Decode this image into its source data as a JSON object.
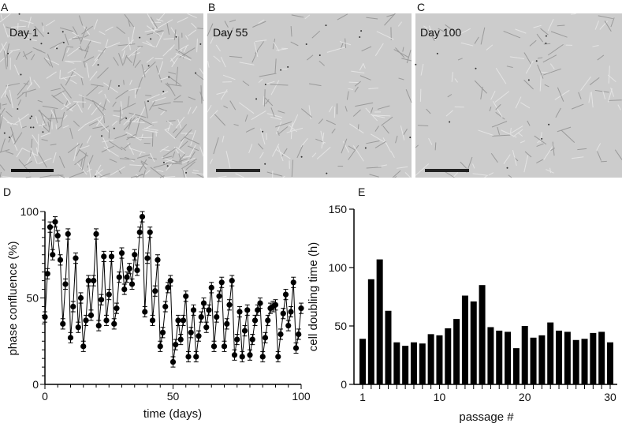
{
  "panels": {
    "A": {
      "letter": "A",
      "caption": "Day 1"
    },
    "B": {
      "letter": "B",
      "caption": "Day 55"
    },
    "C": {
      "letter": "C",
      "caption": "Day 100"
    },
    "D": {
      "letter": "D"
    },
    "E": {
      "letter": "E"
    }
  },
  "colors": {
    "marks": "#000000",
    "micrograph": "#c8c8c8"
  },
  "chart_data": [
    {
      "panel": "D",
      "type": "line",
      "xlabel": "time (days)",
      "ylabel": "phase confluence (%)",
      "xlim": [
        0,
        100
      ],
      "ylim": [
        0,
        100
      ],
      "xticks": [
        0,
        50,
        100
      ],
      "yticks": [
        0,
        50,
        100
      ],
      "markers": "filled circles with error bars",
      "x": [
        0,
        1,
        2,
        3,
        4,
        5,
        6,
        7,
        8,
        9,
        10,
        11,
        12,
        13,
        14,
        15,
        16,
        17,
        18,
        19,
        20,
        21,
        22,
        23,
        24,
        25,
        26,
        27,
        28,
        29,
        30,
        31,
        32,
        33,
        34,
        35,
        36,
        37,
        38,
        39,
        40,
        41,
        42,
        43,
        44,
        45,
        46,
        47,
        48,
        49,
        50,
        51,
        52,
        53,
        54,
        55,
        56,
        57,
        58,
        59,
        60,
        61,
        62,
        63,
        64,
        65,
        66,
        67,
        68,
        69,
        70,
        71,
        72,
        73,
        74,
        75,
        76,
        77,
        78,
        79,
        80,
        81,
        82,
        83,
        84,
        85,
        86,
        87,
        88,
        89,
        90,
        91,
        92,
        93,
        94,
        95,
        96,
        97,
        98,
        99,
        100
      ],
      "y": [
        39,
        64,
        91,
        75,
        94,
        86,
        72,
        35,
        58,
        87,
        27,
        45,
        73,
        33,
        50,
        22,
        37,
        60,
        40,
        60,
        87,
        34,
        49,
        74,
        37,
        52,
        74,
        35,
        44,
        62,
        76,
        55,
        62,
        67,
        58,
        75,
        66,
        88,
        97,
        42,
        73,
        88,
        37,
        54,
        72,
        22,
        30,
        45,
        56,
        60,
        13,
        23,
        37,
        26,
        37,
        51,
        16,
        30,
        43,
        16,
        28,
        39,
        47,
        33,
        43,
        56,
        22,
        39,
        51,
        59,
        22,
        35,
        46,
        60,
        17,
        26,
        42,
        16,
        31,
        43,
        17,
        26,
        37,
        43,
        47,
        16,
        27,
        37,
        44,
        45,
        46,
        16,
        29,
        41,
        52,
        34,
        42,
        59,
        21,
        29,
        44
      ],
      "error": 3
    },
    {
      "panel": "E",
      "type": "bar",
      "xlabel": "passage #",
      "ylabel": "cell doubling time (h)",
      "ylim": [
        0,
        150
      ],
      "yticks": [
        0,
        50,
        100,
        150
      ],
      "xtick_labels": [
        "1",
        "10",
        "20",
        "30"
      ],
      "categories": [
        1,
        2,
        3,
        4,
        5,
        6,
        7,
        8,
        9,
        10,
        11,
        12,
        13,
        14,
        15,
        16,
        17,
        18,
        19,
        20,
        21,
        22,
        23,
        24,
        25,
        26,
        27,
        28,
        29,
        30
      ],
      "values": [
        39,
        90,
        107,
        63,
        36,
        33,
        36,
        35,
        43,
        42,
        48,
        56,
        76,
        71,
        85,
        49,
        46,
        45,
        31,
        50,
        40,
        42,
        53,
        46,
        45,
        38,
        39,
        44,
        45,
        36
      ]
    }
  ]
}
